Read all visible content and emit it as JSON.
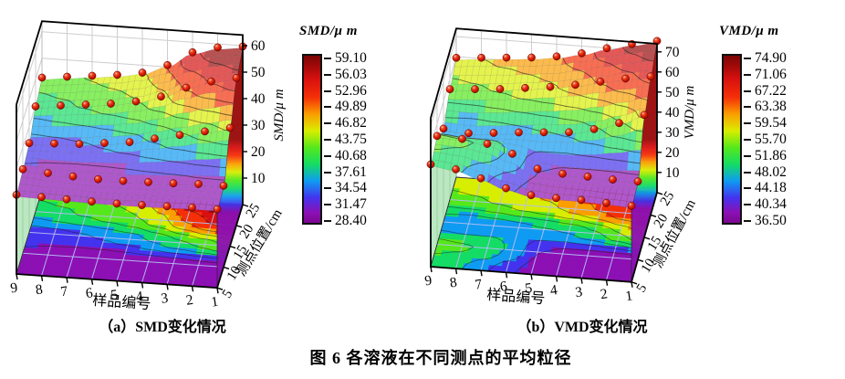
{
  "figure": {
    "caption": "图 6  各溶液在不同测点的平均粒径"
  },
  "panels": [
    {
      "key": "a",
      "subtitle": "（a）SMD变化情况",
      "x_label": "样品编号",
      "x_ticks": [
        "9",
        "8",
        "7",
        "6",
        "5",
        "4",
        "3",
        "2",
        "1"
      ],
      "y_label": "测点位置/cm",
      "y_ticks": [
        "5",
        "10",
        "15",
        "20",
        "25"
      ],
      "z_label": "SMD/μ m",
      "z_ticks": [
        "10",
        "20",
        "30",
        "40",
        "50",
        "60"
      ],
      "colorbar": {
        "title": "SMD/μ m",
        "labels": [
          "59.10",
          "56.03",
          "52.96",
          "49.89",
          "46.82",
          "43.75",
          "40.68",
          "37.61",
          "34.54",
          "31.47",
          "28.40"
        ]
      }
    },
    {
      "key": "b",
      "subtitle": "（b）VMD变化情况",
      "x_label": "样品编号",
      "x_ticks": [
        "9",
        "8",
        "7",
        "6",
        "5",
        "4",
        "3",
        "2",
        "1"
      ],
      "y_label": "测点位置/cm",
      "y_ticks": [
        "5",
        "10",
        "15",
        "20",
        "25"
      ],
      "z_label": "VMD/μ m",
      "z_ticks": [
        "10",
        "20",
        "30",
        "40",
        "50",
        "60",
        "70"
      ],
      "colorbar": {
        "title": "VMD/μ m",
        "labels": [
          "74.90",
          "71.06",
          "67.22",
          "63.38",
          "59.54",
          "55.70",
          "51.86",
          "48.02",
          "44.18",
          "40.34",
          "36.50"
        ]
      }
    }
  ],
  "chart_data": [
    {
      "type": "surface3d-with-floor-contour-projection",
      "title": "（a）SMD变化情况",
      "xlabel": "样品编号",
      "ylabel": "测点位置/cm",
      "zlabel": "SMD/μm",
      "marker": "red-sphere-at-each-grid-node",
      "x_samples": [
        1,
        2,
        3,
        4,
        5,
        6,
        7,
        8,
        9
      ],
      "y_positions_cm": [
        5,
        10,
        15,
        20,
        25
      ],
      "z_axis_ticks": [
        10,
        20,
        30,
        40,
        50,
        60
      ],
      "colorbar_levels": [
        28.4,
        31.47,
        34.54,
        37.61,
        40.68,
        43.75,
        46.82,
        49.89,
        52.96,
        56.03,
        59.1
      ],
      "values_um_estimated_rows_by_position": [
        [
          29.0,
          29.0,
          28.8,
          28.6,
          28.5,
          28.6,
          28.8,
          29.0,
          29.2
        ],
        [
          30.0,
          30.0,
          29.6,
          29.4,
          29.2,
          29.2,
          29.6,
          30.2,
          31.0
        ],
        [
          44.0,
          42.0,
          40.0,
          38.0,
          36.0,
          35.0,
          34.0,
          33.5,
          33.0
        ],
        [
          55.0,
          53.0,
          50.0,
          46.0,
          43.5,
          42.0,
          41.0,
          40.0,
          39.0
        ],
        [
          59.0,
          58.0,
          55.5,
          50.0,
          46.5,
          45.0,
          44.0,
          43.0,
          42.0
        ]
      ]
    },
    {
      "type": "surface3d-with-floor-contour-projection",
      "title": "（b）VMD变化情况",
      "xlabel": "样品编号",
      "ylabel": "测点位置/cm",
      "zlabel": "VMD/μm",
      "marker": "red-sphere-at-each-grid-node",
      "x_samples": [
        1,
        2,
        3,
        4,
        5,
        6,
        7,
        8,
        9
      ],
      "y_positions_cm": [
        5,
        10,
        15,
        20,
        25
      ],
      "z_axis_ticks": [
        10,
        20,
        30,
        40,
        50,
        60,
        70
      ],
      "colorbar_levels": [
        36.5,
        40.34,
        44.18,
        48.02,
        51.86,
        55.7,
        59.54,
        63.38,
        67.22,
        71.06,
        74.9
      ],
      "values_um_estimated_rows_by_position": [
        [
          37.0,
          37.5,
          38.0,
          38.0,
          38.5,
          41.0,
          45.0,
          48.5,
          50.0
        ],
        [
          38.0,
          38.0,
          38.5,
          39.0,
          40.5,
          47.0,
          51.0,
          52.5,
          53.0
        ],
        [
          60.0,
          55.0,
          51.0,
          48.5,
          47.5,
          46.5,
          45.3,
          44.2,
          45.5
        ],
        [
          68.0,
          66.0,
          63.5,
          61.0,
          59.0,
          57.5,
          56.0,
          55.0,
          54.0
        ],
        [
          74.5,
          72.0,
          69.0,
          65.5,
          63.0,
          61.5,
          60.5,
          59.5,
          58.5
        ]
      ]
    }
  ]
}
